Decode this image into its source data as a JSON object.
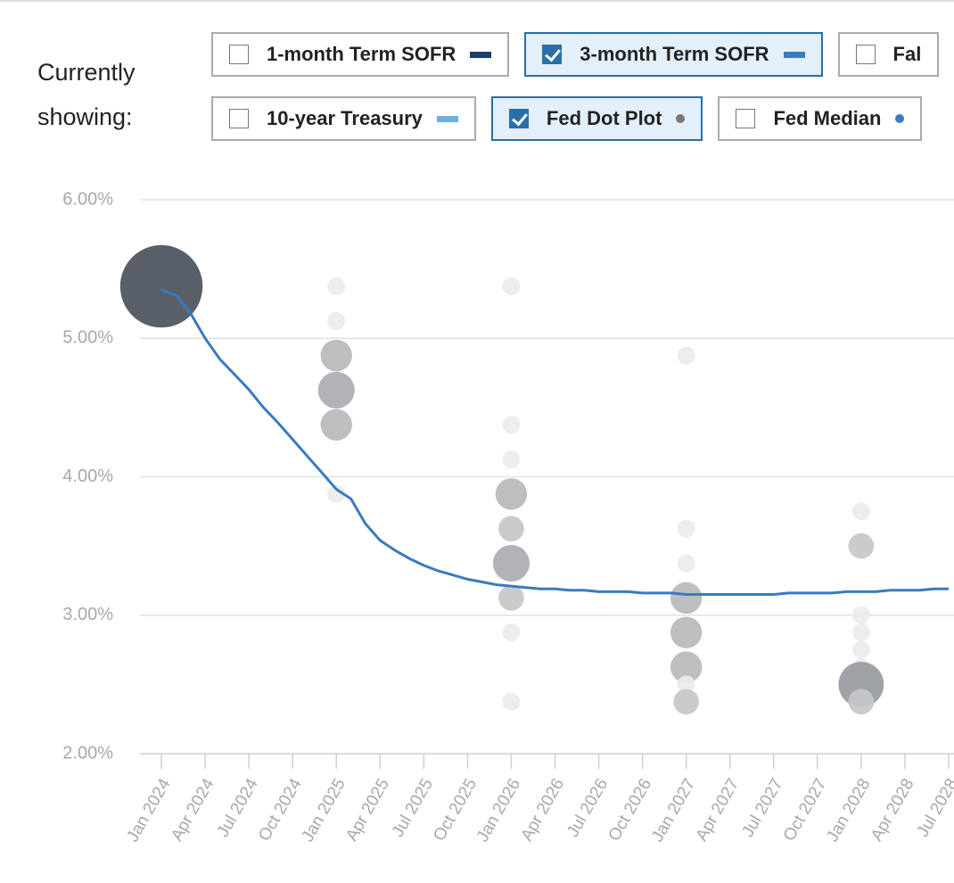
{
  "caption": "Currently showing:",
  "chart_data": {
    "type": "line",
    "legend": [
      {
        "name": "1-month Term SOFR",
        "checked": false,
        "color": "#1c3d6e",
        "marker": "line"
      },
      {
        "name": "3-month Term SOFR",
        "checked": true,
        "color": "#3a7bbf",
        "marker": "line"
      },
      {
        "name": "Fal",
        "checked": false
      },
      {
        "name": "10-year Treasury",
        "checked": false,
        "color": "#6ab0e0",
        "marker": "line"
      },
      {
        "name": "Fed Dot Plot",
        "checked": true,
        "color": "#777777",
        "marker": "dot"
      },
      {
        "name": "Fed Median",
        "checked": false,
        "color": "#3a7bbf",
        "marker": "dot"
      }
    ],
    "ylim": [
      2,
      6
    ],
    "yticks": [
      {
        "value": 2,
        "label": "2.00%"
      },
      {
        "value": 3,
        "label": "3.00%"
      },
      {
        "value": 4,
        "label": "4.00%"
      },
      {
        "value": 5,
        "label": "5.00%"
      },
      {
        "value": 6,
        "label": "6.00%"
      }
    ],
    "xlim": [
      "Nov 2023",
      "Jul 2028"
    ],
    "xticks": [
      "Jan 2024",
      "Apr 2024",
      "Jul 2024",
      "Oct 2024",
      "Jan 2025",
      "Apr 2025",
      "Jul 2025",
      "Oct 2025",
      "Jan 2026",
      "Apr 2026",
      "Jul 2026",
      "Oct 2026",
      "Jan 2027",
      "Apr 2027",
      "Jul 2027",
      "Oct 2027",
      "Jan 2028",
      "Apr 2028",
      "Jul 2028"
    ],
    "grid": true,
    "series": [
      {
        "type": "scatter",
        "color_light": "#ebebeb",
        "color_dark": "#4b525c",
        "x": [
          "Jan 2024",
          "Jan 2025",
          "Jan 2025",
          "Jan 2025",
          "Jan 2025",
          "Jan 2025",
          "Jan 2025",
          "Jan 2026",
          "Jan 2026",
          "Jan 2026",
          "Jan 2026",
          "Jan 2026",
          "Jan 2026",
          "Jan 2026",
          "Jan 2026",
          "Jan 2026",
          "Jan 2027",
          "Jan 2027",
          "Jan 2027",
          "Jan 2027",
          "Jan 2027",
          "Jan 2027",
          "Jan 2027",
          "Jan 2027",
          "Jan 2028",
          "Jan 2028",
          "Jan 2028",
          "Jan 2028",
          "Jan 2028",
          "Jan 2028",
          "Jan 2028",
          "Jan 2028"
        ],
        "values": [
          5.375,
          5.375,
          5.125,
          4.875,
          4.625,
          4.375,
          3.875,
          5.375,
          4.375,
          4.125,
          3.875,
          3.625,
          3.375,
          3.125,
          2.875,
          2.375,
          4.875,
          3.625,
          3.375,
          3.125,
          2.875,
          2.625,
          2.5,
          2.375,
          3.75,
          3.5,
          3.0,
          2.875,
          2.75,
          2.625,
          2.5,
          2.375
        ],
        "sizes": [
          19,
          1,
          1,
          3,
          4,
          3,
          1,
          1,
          1,
          1,
          3,
          2,
          4,
          2,
          1,
          1,
          1,
          1,
          1,
          3,
          3,
          3,
          1,
          2,
          1,
          2,
          1,
          1,
          1,
          1,
          6,
          2
        ]
      },
      {
        "type": "line",
        "color": "#3a7bbf",
        "x": [
          "Jan 2024",
          "Feb 2024",
          "Mar 2024",
          "Apr 2024",
          "May 2024",
          "Jun 2024",
          "Jul 2024",
          "Aug 2024",
          "Sep 2024",
          "Oct 2024",
          "Nov 2024",
          "Dec 2024",
          "Jan 2025",
          "Feb 2025",
          "Mar 2025",
          "Apr 2025",
          "May 2025",
          "Jun 2025",
          "Jul 2025",
          "Aug 2025",
          "Sep 2025",
          "Oct 2025",
          "Nov 2025",
          "Dec 2025",
          "Jan 2026",
          "Feb 2026",
          "Mar 2026",
          "Apr 2026",
          "May 2026",
          "Jun 2026",
          "Jul 2026",
          "Aug 2026",
          "Sep 2026",
          "Oct 2026",
          "Nov 2026",
          "Dec 2026",
          "Jan 2027",
          "Feb 2027",
          "Mar 2027",
          "Apr 2027",
          "May 2027",
          "Jun 2027",
          "Jul 2027",
          "Aug 2027",
          "Sep 2027",
          "Oct 2027",
          "Nov 2027",
          "Dec 2027",
          "Jan 2028",
          "Feb 2028",
          "Mar 2028",
          "Apr 2028",
          "May 2028",
          "Jun 2028",
          "Jul 2028"
        ],
        "values": [
          5.35,
          5.31,
          5.18,
          5.0,
          4.85,
          4.74,
          4.63,
          4.5,
          4.39,
          4.27,
          4.15,
          4.03,
          3.91,
          3.84,
          3.66,
          3.54,
          3.47,
          3.41,
          3.36,
          3.32,
          3.29,
          3.26,
          3.24,
          3.22,
          3.21,
          3.2,
          3.19,
          3.19,
          3.18,
          3.18,
          3.17,
          3.17,
          3.17,
          3.16,
          3.16,
          3.16,
          3.15,
          3.15,
          3.15,
          3.15,
          3.15,
          3.15,
          3.15,
          3.16,
          3.16,
          3.16,
          3.16,
          3.17,
          3.17,
          3.17,
          3.18,
          3.18,
          3.18,
          3.19,
          3.19
        ]
      }
    ]
  }
}
